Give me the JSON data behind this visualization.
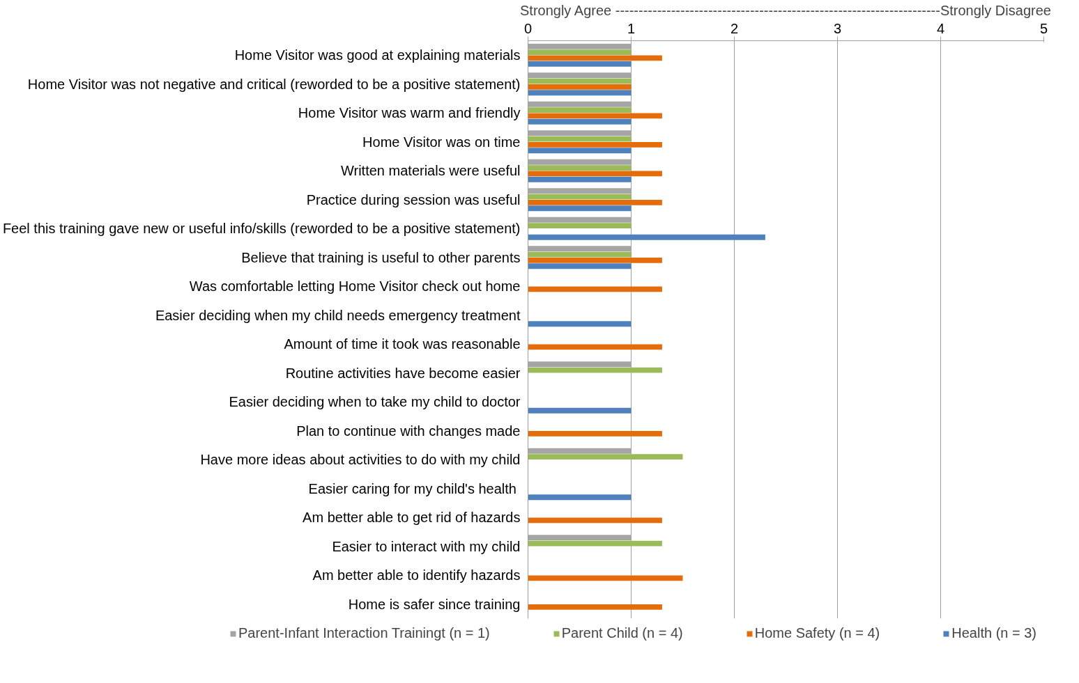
{
  "chart_data": {
    "type": "bar",
    "orientation": "horizontal",
    "xlabel": "Strongly Agree ----------------------------------------------------------------------Strongly Disagree",
    "categories": [
      "Home Visitor was good at explaining materials",
      "Home Visitor was not negative and critical (reworded to be a positive statement)",
      "Home Visitor was warm and friendly",
      "Home Visitor was on time",
      "Written materials were useful",
      "Practice during session was useful",
      "Feel this training gave new or useful info/skills (reworded to be a positive statement)",
      "Believe that training is useful to other parents",
      "Was comfortable letting Home Visitor check out home",
      "Easier deciding when my child needs emergency treatment",
      "Amount of time it took was reasonable",
      "Routine activities have become easier",
      "Easier deciding when to take my child to doctor",
      "Plan to continue with changes made",
      "Have more ideas about activities to do with my child",
      "Easier caring for my child's health ",
      "Am better able to get rid of hazards",
      "Easier to interact with my child",
      "Am better able to identify hazards",
      "Home is safer since training"
    ],
    "series": [
      {
        "name": "Parent-Infant Interaction Trainingt (n = 1)",
        "color": "#a5a5a5",
        "values": [
          1,
          1,
          1,
          1,
          1,
          1,
          1,
          1,
          null,
          null,
          null,
          1,
          null,
          null,
          1,
          null,
          null,
          1,
          null,
          null
        ]
      },
      {
        "name": "Parent Child (n = 4)",
        "color": "#9bbb59",
        "values": [
          1,
          1,
          1,
          1,
          1,
          1,
          1,
          1,
          null,
          null,
          null,
          1.3,
          null,
          null,
          1.5,
          null,
          null,
          1.3,
          null,
          null
        ]
      },
      {
        "name": "Home Safety (n = 4)",
        "color": "#e46c0a",
        "values": [
          1.3,
          1,
          1.3,
          1.3,
          1.3,
          1.3,
          null,
          1.3,
          1.3,
          null,
          1.3,
          null,
          null,
          1.3,
          null,
          null,
          1.3,
          null,
          1.5,
          1.3
        ]
      },
      {
        "name": "Health (n = 3)",
        "color": "#4f81bd",
        "values": [
          1,
          1,
          1,
          1,
          1,
          1,
          2.3,
          1,
          null,
          1,
          null,
          null,
          1,
          null,
          null,
          1,
          null,
          null,
          null,
          null
        ]
      }
    ],
    "xlim": [
      0,
      5
    ],
    "xticks": [
      0,
      1,
      2,
      3,
      4,
      5
    ],
    "grid": "x",
    "legend": "bottom"
  }
}
